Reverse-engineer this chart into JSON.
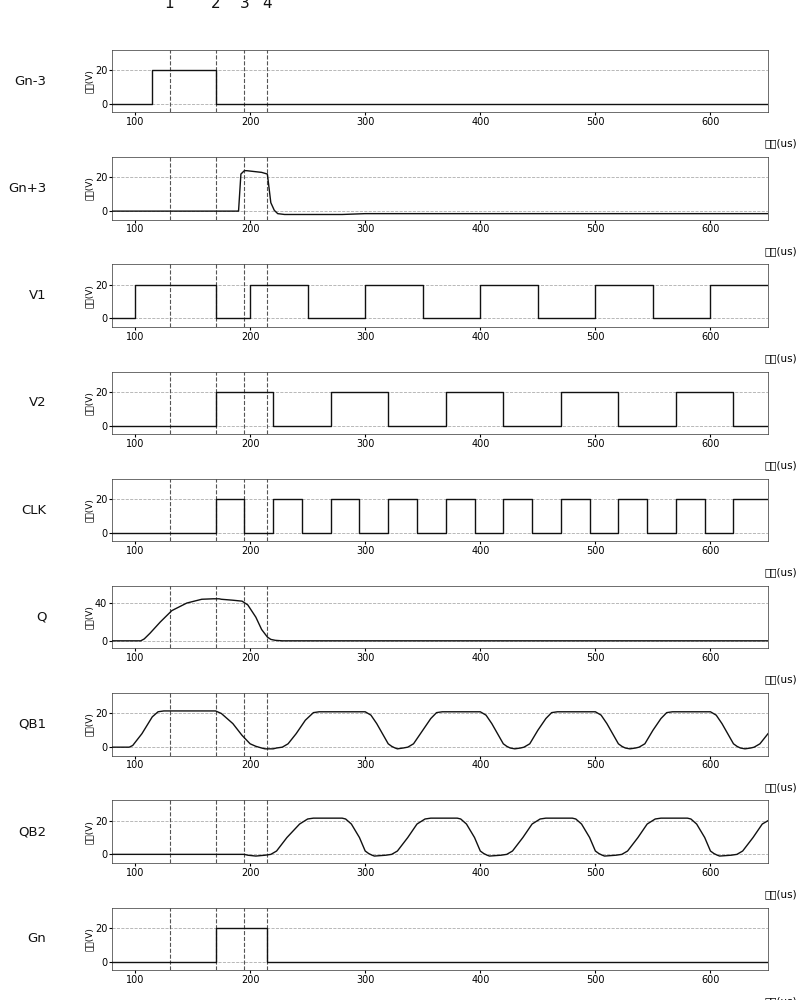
{
  "signals": [
    "Gn-3",
    "Gn+3",
    "V1",
    "V2",
    "CLK",
    "Q",
    "QB1",
    "QB2",
    "Gn"
  ],
  "xlim": [
    80,
    650
  ],
  "xticks": [
    100,
    200,
    300,
    400,
    500,
    600
  ],
  "xlabel": "时间(us)",
  "ylabel": "电压(V)",
  "vlines": [
    130,
    170,
    195,
    215
  ],
  "vline_labels": [
    "1",
    "2",
    "3",
    "4"
  ],
  "grid_color": "#999999",
  "line_color": "#111111",
  "background": "#ffffff",
  "signal_configs": {
    "Gn-3": {
      "ylim": [
        -5,
        32
      ],
      "yticks": [
        0,
        20
      ],
      "signal": [
        [
          80,
          0
        ],
        [
          115,
          0
        ],
        [
          115,
          20
        ],
        [
          170,
          20
        ],
        [
          170,
          0
        ],
        [
          650,
          0
        ]
      ]
    },
    "Gn+3": {
      "ylim": [
        -5,
        32
      ],
      "yticks": [
        0,
        20
      ],
      "signal": [
        [
          80,
          0
        ],
        [
          190,
          0
        ],
        [
          190,
          0.5
        ],
        [
          192,
          22
        ],
        [
          195,
          24
        ],
        [
          197,
          24
        ],
        [
          210,
          23
        ],
        [
          215,
          22
        ],
        [
          218,
          5
        ],
        [
          221,
          0.5
        ],
        [
          224,
          -1.5
        ],
        [
          230,
          -2
        ],
        [
          280,
          -2
        ],
        [
          300,
          -1.5
        ],
        [
          320,
          -1.5
        ],
        [
          350,
          -1.5
        ],
        [
          380,
          -1.5
        ],
        [
          400,
          -1.5
        ],
        [
          420,
          -1.5
        ],
        [
          440,
          -1.5
        ],
        [
          460,
          -1.5
        ],
        [
          480,
          -1.5
        ],
        [
          500,
          -1.5
        ],
        [
          520,
          -1.5
        ],
        [
          540,
          -1.5
        ],
        [
          560,
          -1.5
        ],
        [
          580,
          -1.5
        ],
        [
          600,
          -1.5
        ],
        [
          620,
          -1.5
        ],
        [
          650,
          -1.5
        ]
      ]
    },
    "V1": {
      "ylim": [
        -5,
        32
      ],
      "yticks": [
        0,
        20
      ],
      "signal": [
        [
          80,
          0
        ],
        [
          100,
          0
        ],
        [
          100,
          20
        ],
        [
          170,
          20
        ],
        [
          170,
          0
        ],
        [
          200,
          0
        ],
        [
          200,
          20
        ],
        [
          250,
          20
        ],
        [
          250,
          0
        ],
        [
          300,
          0
        ],
        [
          300,
          20
        ],
        [
          350,
          20
        ],
        [
          350,
          0
        ],
        [
          400,
          0
        ],
        [
          400,
          20
        ],
        [
          450,
          20
        ],
        [
          450,
          0
        ],
        [
          500,
          0
        ],
        [
          500,
          20
        ],
        [
          550,
          20
        ],
        [
          550,
          0
        ],
        [
          600,
          0
        ],
        [
          600,
          20
        ],
        [
          650,
          20
        ]
      ]
    },
    "V2": {
      "ylim": [
        -5,
        32
      ],
      "yticks": [
        0,
        20
      ],
      "signal": [
        [
          80,
          0
        ],
        [
          170,
          0
        ],
        [
          170,
          20
        ],
        [
          220,
          20
        ],
        [
          220,
          0
        ],
        [
          270,
          0
        ],
        [
          270,
          20
        ],
        [
          320,
          20
        ],
        [
          320,
          0
        ],
        [
          370,
          0
        ],
        [
          370,
          20
        ],
        [
          420,
          20
        ],
        [
          420,
          0
        ],
        [
          470,
          0
        ],
        [
          470,
          20
        ],
        [
          520,
          20
        ],
        [
          520,
          0
        ],
        [
          570,
          0
        ],
        [
          570,
          20
        ],
        [
          620,
          20
        ],
        [
          620,
          0
        ],
        [
          650,
          0
        ]
      ]
    },
    "CLK": {
      "ylim": [
        -5,
        32
      ],
      "yticks": [
        0,
        20
      ],
      "signal": [
        [
          80,
          0
        ],
        [
          170,
          0
        ],
        [
          170,
          20
        ],
        [
          195,
          20
        ],
        [
          195,
          0
        ],
        [
          220,
          0
        ],
        [
          220,
          20
        ],
        [
          245,
          20
        ],
        [
          245,
          0
        ],
        [
          270,
          0
        ],
        [
          270,
          20
        ],
        [
          295,
          20
        ],
        [
          295,
          0
        ],
        [
          320,
          0
        ],
        [
          320,
          20
        ],
        [
          345,
          20
        ],
        [
          345,
          0
        ],
        [
          370,
          0
        ],
        [
          370,
          20
        ],
        [
          395,
          20
        ],
        [
          395,
          0
        ],
        [
          420,
          0
        ],
        [
          420,
          20
        ],
        [
          445,
          20
        ],
        [
          445,
          0
        ],
        [
          470,
          0
        ],
        [
          470,
          20
        ],
        [
          495,
          20
        ],
        [
          495,
          0
        ],
        [
          520,
          0
        ],
        [
          520,
          20
        ],
        [
          545,
          20
        ],
        [
          545,
          0
        ],
        [
          570,
          0
        ],
        [
          570,
          20
        ],
        [
          595,
          20
        ],
        [
          595,
          0
        ],
        [
          620,
          0
        ],
        [
          620,
          20
        ],
        [
          645,
          20
        ],
        [
          650,
          20
        ]
      ]
    },
    "Q": {
      "ylim": [
        -8,
        58
      ],
      "yticks": [
        0,
        40
      ],
      "signal": [
        [
          80,
          0
        ],
        [
          105,
          0
        ],
        [
          108,
          2
        ],
        [
          113,
          8
        ],
        [
          122,
          20
        ],
        [
          132,
          32
        ],
        [
          145,
          40
        ],
        [
          158,
          44
        ],
        [
          168,
          44.5
        ],
        [
          173,
          44.5
        ],
        [
          175,
          44
        ],
        [
          185,
          43
        ],
        [
          193,
          42
        ],
        [
          198,
          38
        ],
        [
          205,
          25
        ],
        [
          210,
          12
        ],
        [
          215,
          4
        ],
        [
          218,
          1.5
        ],
        [
          222,
          0.5
        ],
        [
          228,
          0
        ],
        [
          650,
          0
        ]
      ]
    },
    "QB1": {
      "ylim": [
        -5,
        32
      ],
      "yticks": [
        0,
        20
      ],
      "signal": [
        [
          80,
          0
        ],
        [
          95,
          0
        ],
        [
          98,
          1
        ],
        [
          106,
          8
        ],
        [
          115,
          18
        ],
        [
          120,
          21
        ],
        [
          125,
          21.5
        ],
        [
          170,
          21.5
        ],
        [
          175,
          20
        ],
        [
          185,
          14
        ],
        [
          193,
          7
        ],
        [
          200,
          2
        ],
        [
          205,
          0.5
        ],
        [
          210,
          -0.5
        ],
        [
          213,
          -1
        ],
        [
          220,
          -1
        ],
        [
          223,
          -0.5
        ],
        [
          228,
          0
        ],
        [
          233,
          2
        ],
        [
          240,
          8
        ],
        [
          248,
          16
        ],
        [
          255,
          20.5
        ],
        [
          260,
          21
        ],
        [
          300,
          21
        ],
        [
          305,
          19
        ],
        [
          310,
          14
        ],
        [
          315,
          8
        ],
        [
          320,
          2
        ],
        [
          323,
          0.5
        ],
        [
          326,
          -0.5
        ],
        [
          328,
          -1
        ],
        [
          333,
          -0.5
        ],
        [
          337,
          0
        ],
        [
          342,
          2
        ],
        [
          350,
          10
        ],
        [
          357,
          17
        ],
        [
          362,
          20.5
        ],
        [
          367,
          21
        ],
        [
          400,
          21
        ],
        [
          405,
          19
        ],
        [
          410,
          14
        ],
        [
          415,
          8
        ],
        [
          420,
          2
        ],
        [
          423,
          0.5
        ],
        [
          426,
          -0.5
        ],
        [
          430,
          -1
        ],
        [
          435,
          -0.5
        ],
        [
          438,
          0
        ],
        [
          443,
          2
        ],
        [
          450,
          10
        ],
        [
          457,
          17
        ],
        [
          462,
          20.5
        ],
        [
          467,
          21
        ],
        [
          500,
          21
        ],
        [
          505,
          19
        ],
        [
          510,
          14
        ],
        [
          515,
          8
        ],
        [
          520,
          2
        ],
        [
          523,
          0.5
        ],
        [
          526,
          -0.5
        ],
        [
          530,
          -1
        ],
        [
          535,
          -0.5
        ],
        [
          538,
          0
        ],
        [
          543,
          2
        ],
        [
          550,
          10
        ],
        [
          557,
          17
        ],
        [
          562,
          20.5
        ],
        [
          567,
          21
        ],
        [
          600,
          21
        ],
        [
          605,
          19
        ],
        [
          610,
          14
        ],
        [
          615,
          8
        ],
        [
          620,
          2
        ],
        [
          623,
          0.5
        ],
        [
          626,
          -0.5
        ],
        [
          630,
          -1
        ],
        [
          635,
          -0.5
        ],
        [
          638,
          0
        ],
        [
          643,
          2
        ],
        [
          650,
          8
        ]
      ]
    },
    "QB2": {
      "ylim": [
        -5,
        32
      ],
      "yticks": [
        0,
        20
      ],
      "signal": [
        [
          80,
          0
        ],
        [
          195,
          0
        ],
        [
          198,
          -0.5
        ],
        [
          205,
          -1
        ],
        [
          213,
          -0.5
        ],
        [
          218,
          0
        ],
        [
          223,
          2
        ],
        [
          232,
          10
        ],
        [
          243,
          18
        ],
        [
          250,
          21
        ],
        [
          255,
          21.5
        ],
        [
          280,
          21.5
        ],
        [
          283,
          21
        ],
        [
          288,
          18
        ],
        [
          295,
          10
        ],
        [
          300,
          2
        ],
        [
          303,
          0.5
        ],
        [
          306,
          -0.5
        ],
        [
          308,
          -1
        ],
        [
          318,
          -0.5
        ],
        [
          323,
          0
        ],
        [
          328,
          2
        ],
        [
          337,
          10
        ],
        [
          345,
          18
        ],
        [
          352,
          21
        ],
        [
          357,
          21.5
        ],
        [
          380,
          21.5
        ],
        [
          383,
          21
        ],
        [
          388,
          18
        ],
        [
          395,
          10
        ],
        [
          400,
          2
        ],
        [
          403,
          0.5
        ],
        [
          406,
          -0.5
        ],
        [
          408,
          -1
        ],
        [
          418,
          -0.5
        ],
        [
          423,
          0
        ],
        [
          428,
          2
        ],
        [
          437,
          10
        ],
        [
          445,
          18
        ],
        [
          452,
          21
        ],
        [
          457,
          21.5
        ],
        [
          480,
          21.5
        ],
        [
          483,
          21
        ],
        [
          488,
          18
        ],
        [
          495,
          10
        ],
        [
          500,
          2
        ],
        [
          503,
          0.5
        ],
        [
          506,
          -0.5
        ],
        [
          508,
          -1
        ],
        [
          518,
          -0.5
        ],
        [
          523,
          0
        ],
        [
          528,
          2
        ],
        [
          537,
          10
        ],
        [
          545,
          18
        ],
        [
          552,
          21
        ],
        [
          557,
          21.5
        ],
        [
          580,
          21.5
        ],
        [
          583,
          21
        ],
        [
          588,
          18
        ],
        [
          595,
          10
        ],
        [
          600,
          2
        ],
        [
          603,
          0.5
        ],
        [
          606,
          -0.5
        ],
        [
          608,
          -1
        ],
        [
          618,
          -0.5
        ],
        [
          623,
          0
        ],
        [
          628,
          2
        ],
        [
          637,
          10
        ],
        [
          645,
          18
        ],
        [
          650,
          20
        ]
      ]
    },
    "Gn": {
      "ylim": [
        -5,
        32
      ],
      "yticks": [
        0,
        20
      ],
      "signal": [
        [
          80,
          0
        ],
        [
          170,
          0
        ],
        [
          170,
          20
        ],
        [
          215,
          20
        ],
        [
          215,
          0
        ],
        [
          650,
          0
        ]
      ]
    }
  },
  "figsize": [
    8.0,
    10.0
  ],
  "dpi": 100
}
